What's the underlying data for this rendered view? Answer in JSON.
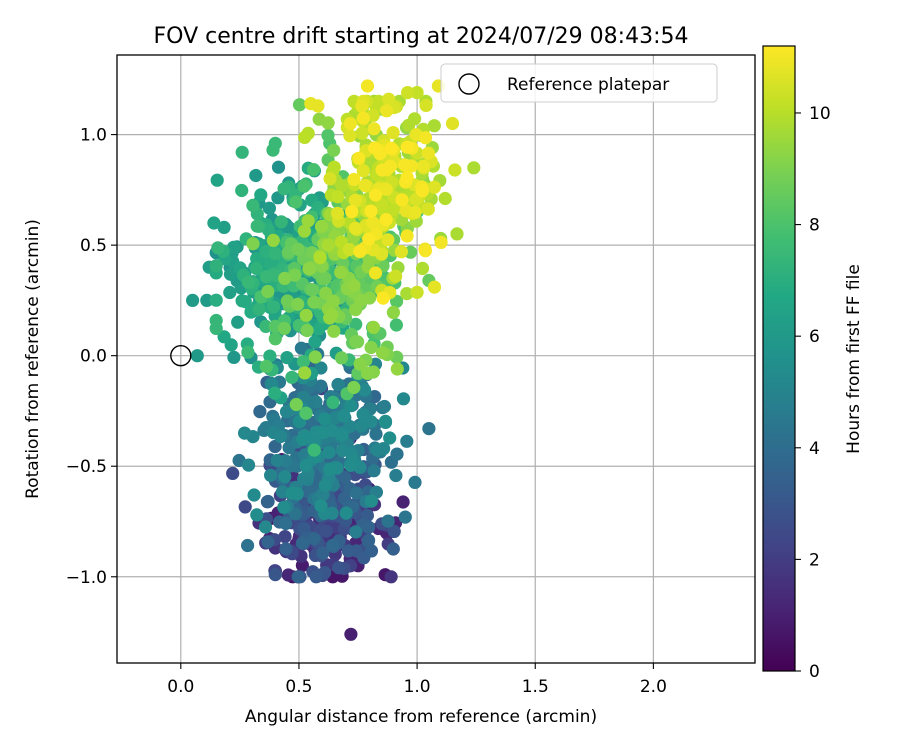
{
  "chart_data": {
    "type": "scatter",
    "title": "FOV centre drift starting at 2024/07/29 08:43:54",
    "xlabel": "Angular distance from reference (arcmin)",
    "ylabel": "Rotation from reference (arcmin)",
    "xlim": [
      -0.27,
      2.43
    ],
    "ylim": [
      -1.39,
      1.36
    ],
    "xticks": [
      0.0,
      0.5,
      1.0,
      1.5,
      2.0
    ],
    "xtick_labels": [
      "0.0",
      "0.5",
      "1.0",
      "1.5",
      "2.0"
    ],
    "yticks": [
      -1.0,
      -0.5,
      0.0,
      0.5,
      1.0
    ],
    "ytick_labels": [
      "−1.0",
      "−0.5",
      "0.0",
      "0.5",
      "1.0"
    ],
    "grid": true,
    "legend": {
      "position": "top-right",
      "entries": [
        "Reference platepar"
      ]
    },
    "reference_point": {
      "x": 0.0,
      "y": 0.0,
      "marker": "open-circle"
    },
    "colorbar": {
      "label": "Hours from first FF file",
      "min": 0,
      "max": 11.2,
      "ticks": [
        0,
        2,
        4,
        6,
        8,
        10
      ],
      "colormap": "viridis"
    },
    "clusters": [
      {
        "hours": [
          0.5,
          3.8
        ],
        "x_mean": 0.62,
        "x_sd": 0.12,
        "y_mean": -0.72,
        "y_sd": 0.15,
        "count": 260
      },
      {
        "hours": [
          3.5,
          5.5
        ],
        "x_mean": 0.6,
        "x_sd": 0.14,
        "y_mean": -0.35,
        "y_sd": 0.2,
        "count": 260
      },
      {
        "hours": [
          5.5,
          7.5
        ],
        "x_mean": 0.45,
        "x_sd": 0.14,
        "y_mean": 0.38,
        "y_sd": 0.2,
        "count": 300
      },
      {
        "hours": [
          7.5,
          9.5
        ],
        "x_mean": 0.68,
        "x_sd": 0.14,
        "y_mean": 0.4,
        "y_sd": 0.22,
        "count": 240
      },
      {
        "hours": [
          9.3,
          11.2
        ],
        "x_mean": 0.87,
        "x_sd": 0.11,
        "y_mean": 0.75,
        "y_sd": 0.2,
        "count": 260
      }
    ],
    "points": [
      {
        "x": 0.72,
        "y": -1.26,
        "h": 1.0
      },
      {
        "x": 0.4,
        "y": -0.99,
        "h": 3.0
      },
      {
        "x": 0.63,
        "y": -0.96,
        "h": 0.6
      },
      {
        "x": 0.75,
        "y": -0.95,
        "h": 1.0
      },
      {
        "x": 0.4,
        "y": -0.87,
        "h": 1.6
      },
      {
        "x": 0.87,
        "y": -0.8,
        "h": 1.2
      },
      {
        "x": 0.95,
        "y": -0.73,
        "h": 4.4
      },
      {
        "x": 0.31,
        "y": -0.63,
        "h": 5.3
      },
      {
        "x": 1.05,
        "y": -0.33,
        "h": 4.3
      },
      {
        "x": 0.27,
        "y": -0.35,
        "h": 5.2
      },
      {
        "x": 0.07,
        "y": 0.0,
        "h": 6.0
      },
      {
        "x": 0.11,
        "y": 0.25,
        "h": 6.1
      },
      {
        "x": 0.05,
        "y": 0.25,
        "h": 6.1
      },
      {
        "x": 0.12,
        "y": 0.4,
        "h": 6.2
      },
      {
        "x": 0.14,
        "y": 0.6,
        "h": 6.5
      },
      {
        "x": 0.26,
        "y": 0.92,
        "h": 7.3
      },
      {
        "x": 0.4,
        "y": 0.96,
        "h": 7.5
      },
      {
        "x": 0.39,
        "y": 0.93,
        "h": 7.5
      },
      {
        "x": 0.63,
        "y": 0.96,
        "h": 8.0
      },
      {
        "x": 0.55,
        "y": 1.14,
        "h": 10.8
      },
      {
        "x": 0.58,
        "y": 1.13,
        "h": 10.8
      },
      {
        "x": 0.79,
        "y": 1.22,
        "h": 11.0
      },
      {
        "x": 0.88,
        "y": 1.16,
        "h": 10.6
      },
      {
        "x": 0.96,
        "y": 1.19,
        "h": 10.4
      },
      {
        "x": 1.0,
        "y": 1.19,
        "h": 10.2
      },
      {
        "x": 1.09,
        "y": 1.22,
        "h": 10.8
      },
      {
        "x": 1.15,
        "y": 1.05,
        "h": 10.7
      },
      {
        "x": 1.24,
        "y": 0.85,
        "h": 9.8
      },
      {
        "x": 1.16,
        "y": 0.84,
        "h": 10.3
      },
      {
        "x": 1.1,
        "y": 0.53,
        "h": 9.5
      },
      {
        "x": 1.05,
        "y": 0.34,
        "h": 8.5
      },
      {
        "x": 0.68,
        "y": -0.01,
        "h": 8.7
      },
      {
        "x": 0.79,
        "y": -0.08,
        "h": 9.2
      },
      {
        "x": 0.75,
        "y": -0.08,
        "h": 8.4
      },
      {
        "x": 0.53,
        "y": -0.26,
        "h": 8.1
      }
    ]
  }
}
